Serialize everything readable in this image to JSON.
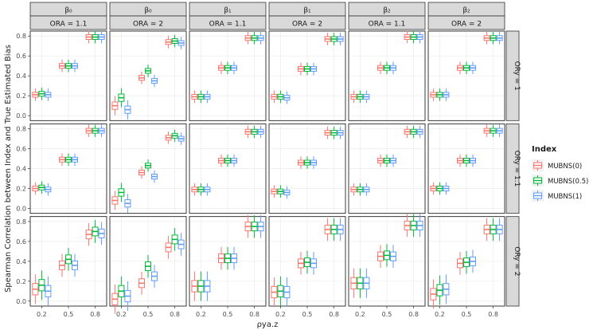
{
  "chart_data": {
    "type": "box",
    "ylabel": "Spearman Correlation between Index and True Estimated Bias",
    "xlabel": "ρya.z",
    "x_ticks": [
      "0.2",
      "0.5",
      "0.8"
    ],
    "y_ticks": [
      "0.0",
      "0.2",
      "0.4",
      "0.6",
      "0.8"
    ],
    "ylim": [
      -0.05,
      0.85
    ],
    "col_headers_top": [
      "β₀",
      "β₀",
      "β₁",
      "β₁",
      "β₂",
      "β₂"
    ],
    "col_headers_bottom": [
      "ORA = 1.1",
      "ORA = 2",
      "ORA = 1.1",
      "ORA = 2",
      "ORA = 1.1",
      "ORA = 2"
    ],
    "row_headers": [
      "ORy = 1",
      "ORy = 1.1",
      "ORy = 2"
    ],
    "legend": {
      "title": "Index",
      "position": "right",
      "entries": [
        {
          "name": "MUBNS(0)",
          "color": "#F8766D"
        },
        {
          "name": "MUBNS(0.5)",
          "color": "#00BA38"
        },
        {
          "name": "MUBNS(1)",
          "color": "#619CFF"
        }
      ]
    },
    "panels": [
      [
        [
          [
            0.21,
            0.22,
            0.21
          ],
          [
            0.5,
            0.5,
            0.5
          ],
          [
            0.79,
            0.79,
            0.79
          ]
        ],
        [
          [
            0.1,
            0.18,
            0.06
          ],
          [
            0.38,
            0.45,
            0.35
          ],
          [
            0.74,
            0.75,
            0.73
          ]
        ],
        [
          [
            0.19,
            0.19,
            0.19
          ],
          [
            0.48,
            0.48,
            0.48
          ],
          [
            0.78,
            0.78,
            0.78
          ]
        ],
        [
          [
            0.19,
            0.19,
            0.18
          ],
          [
            0.47,
            0.47,
            0.47
          ],
          [
            0.77,
            0.77,
            0.77
          ]
        ],
        [
          [
            0.19,
            0.19,
            0.19
          ],
          [
            0.48,
            0.48,
            0.48
          ],
          [
            0.79,
            0.79,
            0.79
          ]
        ],
        [
          [
            0.21,
            0.21,
            0.21
          ],
          [
            0.48,
            0.48,
            0.48
          ],
          [
            0.78,
            0.78,
            0.78
          ]
        ]
      ],
      [
        [
          [
            0.2,
            0.21,
            0.19
          ],
          [
            0.49,
            0.49,
            0.49
          ],
          [
            0.78,
            0.78,
            0.78
          ]
        ],
        [
          [
            0.08,
            0.16,
            0.05
          ],
          [
            0.36,
            0.43,
            0.32
          ],
          [
            0.71,
            0.73,
            0.7
          ]
        ],
        [
          [
            0.19,
            0.19,
            0.19
          ],
          [
            0.48,
            0.48,
            0.48
          ],
          [
            0.77,
            0.77,
            0.77
          ]
        ],
        [
          [
            0.17,
            0.17,
            0.16
          ],
          [
            0.46,
            0.46,
            0.46
          ],
          [
            0.76,
            0.76,
            0.76
          ]
        ],
        [
          [
            0.19,
            0.19,
            0.19
          ],
          [
            0.48,
            0.48,
            0.48
          ],
          [
            0.77,
            0.77,
            0.77
          ]
        ],
        [
          [
            0.2,
            0.2,
            0.2
          ],
          [
            0.48,
            0.48,
            0.48
          ],
          [
            0.78,
            0.78,
            0.78
          ]
        ]
      ],
      [
        [
          [
            0.12,
            0.16,
            0.1
          ],
          [
            0.36,
            0.42,
            0.36
          ],
          [
            0.67,
            0.7,
            0.68
          ]
        ],
        [
          [
            0.02,
            0.1,
            0.05
          ],
          [
            0.18,
            0.35,
            0.25
          ],
          [
            0.54,
            0.62,
            0.57
          ]
        ],
        [
          [
            0.15,
            0.15,
            0.15
          ],
          [
            0.43,
            0.43,
            0.43
          ],
          [
            0.75,
            0.75,
            0.75
          ]
        ],
        [
          [
            0.09,
            0.1,
            0.09
          ],
          [
            0.38,
            0.39,
            0.38
          ],
          [
            0.72,
            0.72,
            0.72
          ]
        ],
        [
          [
            0.18,
            0.18,
            0.18
          ],
          [
            0.45,
            0.46,
            0.45
          ],
          [
            0.76,
            0.76,
            0.76
          ]
        ],
        [
          [
            0.07,
            0.11,
            0.12
          ],
          [
            0.38,
            0.39,
            0.4
          ],
          [
            0.72,
            0.72,
            0.72
          ]
        ]
      ]
    ]
  }
}
